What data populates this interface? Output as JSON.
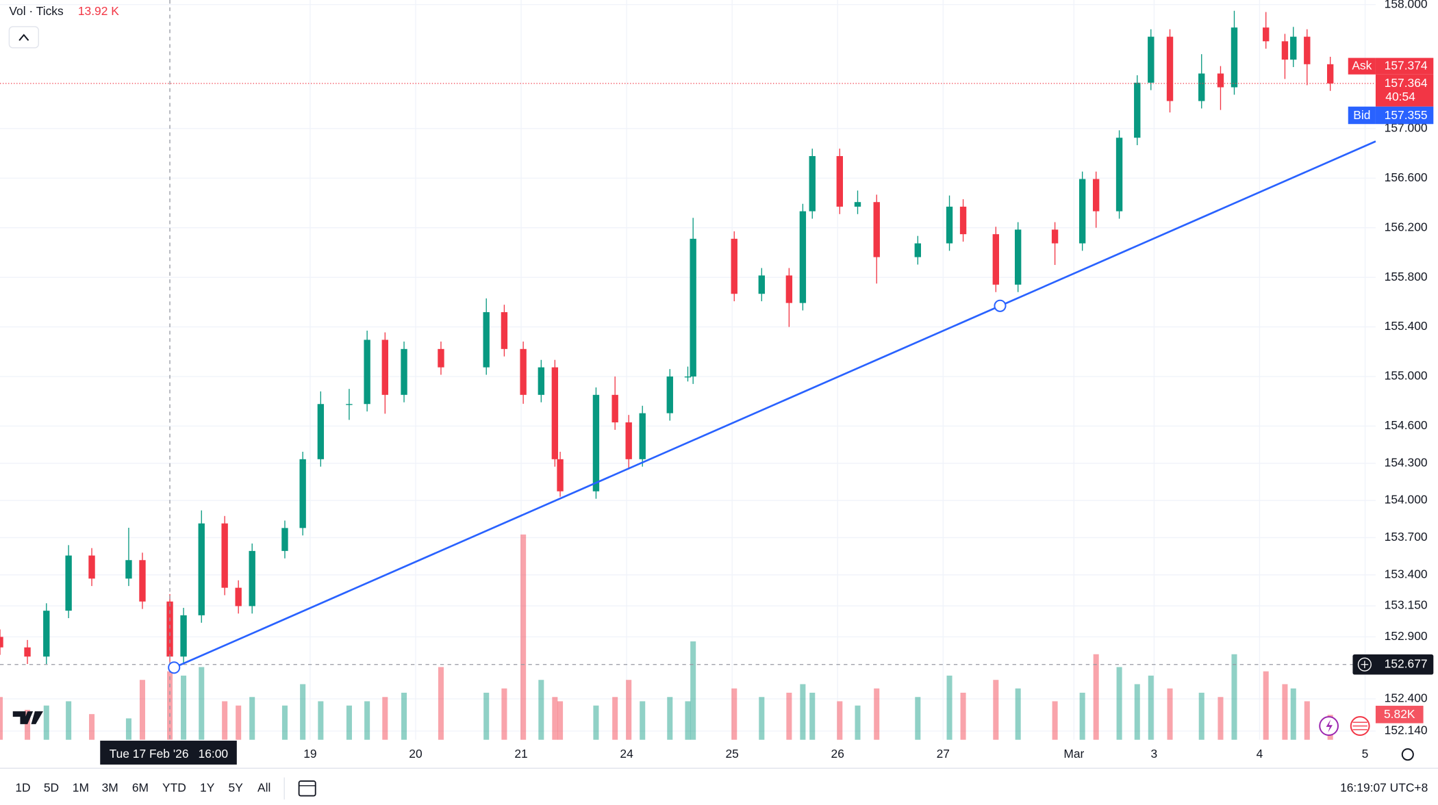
{
  "chart_data": {
    "type": "candlestick",
    "xlim": [
      -0.94,
      12.1
    ],
    "xticks": [
      {
        "value": 2,
        "label": "19"
      },
      {
        "value": 3,
        "label": "20"
      },
      {
        "value": 4,
        "label": "21"
      },
      {
        "value": 5,
        "label": "24"
      },
      {
        "value": 6,
        "label": "25"
      },
      {
        "value": 7,
        "label": "26"
      },
      {
        "value": 8,
        "label": "27"
      },
      {
        "value": 9.24,
        "label": "Mar"
      },
      {
        "value": 10,
        "label": "3"
      },
      {
        "value": 11,
        "label": "4"
      },
      {
        "value": 12,
        "label": "5"
      }
    ],
    "ylim": [
      152.07,
      158.037
    ],
    "yticks": [
      {
        "value": 158,
        "label": "158.000"
      },
      {
        "value": 157,
        "label": "157.000"
      },
      {
        "value": 156.6,
        "label": "156.600"
      },
      {
        "value": 156.2,
        "label": "156.200"
      },
      {
        "value": 155.8,
        "label": "155.800"
      },
      {
        "value": 155.4,
        "label": "155.400"
      },
      {
        "value": 155,
        "label": "155.000"
      },
      {
        "value": 154.6,
        "label": "154.600"
      },
      {
        "value": 154.3,
        "label": "154.300"
      },
      {
        "value": 154,
        "label": "154.000"
      },
      {
        "value": 153.7,
        "label": "153.700"
      },
      {
        "value": 153.4,
        "label": "153.400"
      },
      {
        "value": 153.15,
        "label": "153.150"
      },
      {
        "value": 152.9,
        "label": "152.900"
      },
      {
        "value": 152.4,
        "label": "152.400"
      },
      {
        "value": 152.14,
        "label": "152.140"
      }
    ],
    "grid": true,
    "up_color": "#089981",
    "down_color": "#f23645",
    "x": [
      -0.94,
      -0.68,
      -0.5,
      -0.29,
      -0.07,
      0.28,
      0.41,
      0.67,
      0.8,
      0.97,
      1.19,
      1.32,
      1.45,
      1.76,
      1.93,
      2.1,
      2.37,
      2.54,
      2.71,
      2.89,
      3.24,
      3.67,
      3.84,
      4.02,
      4.19,
      4.32,
      4.37,
      4.71,
      4.89,
      5.02,
      5.15,
      5.41,
      5.58,
      5.63,
      6.02,
      6.28,
      6.54,
      6.67,
      6.76,
      7.02,
      7.19,
      7.37,
      7.76,
      8.06,
      8.19,
      8.5,
      8.71,
      9.06,
      9.32,
      9.45,
      9.67,
      9.84,
      9.97,
      10.15,
      10.45,
      10.63,
      10.76,
      11.06,
      11.24,
      11.32,
      11.45,
      11.67
    ],
    "open": [
      152.9,
      152.815,
      152.741,
      153.111,
      153.556,
      153.37,
      153.519,
      153.185,
      152.741,
      153.074,
      153.815,
      153.296,
      153.148,
      153.593,
      153.778,
      154.333,
      154.778,
      154.778,
      155.296,
      154.852,
      155.222,
      155.074,
      155.519,
      155.222,
      154.852,
      155.074,
      154.333,
      154.074,
      154.852,
      154.63,
      154.333,
      154.704,
      155,
      155,
      156.111,
      155.667,
      155.815,
      155.593,
      156.333,
      156.778,
      156.37,
      156.407,
      155.963,
      156.074,
      156.37,
      156.148,
      155.741,
      156.185,
      156.074,
      156.593,
      156.333,
      156.926,
      157.37,
      157.741,
      157.222,
      157.444,
      157.333,
      157.815,
      157.704,
      157.556,
      157.741,
      157.519
    ],
    "high": [
      152.96,
      152.875,
      153.171,
      153.64,
      153.616,
      153.78,
      153.579,
      153.245,
      153.134,
      153.92,
      153.875,
      153.356,
      153.653,
      153.838,
      154.393,
      154.88,
      154.9,
      155.37,
      155.356,
      155.282,
      155.282,
      155.63,
      155.579,
      155.282,
      155.134,
      155.134,
      154.393,
      154.912,
      155,
      154.69,
      154.764,
      155.06,
      155.08,
      156.28,
      156.171,
      155.875,
      155.875,
      156.393,
      156.838,
      156.838,
      156.5,
      156.467,
      156.134,
      156.46,
      156.43,
      156.208,
      156.245,
      156.245,
      156.653,
      156.653,
      156.986,
      157.43,
      157.801,
      157.801,
      157.6,
      157.504,
      157.95,
      157.94,
      157.764,
      157.82,
      157.801,
      157.579
    ],
    "low": [
      152.755,
      152.681,
      152.681,
      153.051,
      153.31,
      153.31,
      153.125,
      152.66,
      152.681,
      153.014,
      153.236,
      153.088,
      153.088,
      153.533,
      153.718,
      154.273,
      154.65,
      154.718,
      154.7,
      154.792,
      155.014,
      155.014,
      155.162,
      154.78,
      154.792,
      154.273,
      154.03,
      154.014,
      154.57,
      154.25,
      154.273,
      154.644,
      154.96,
      154.94,
      155.607,
      155.607,
      155.4,
      155.533,
      156.273,
      156.31,
      156.31,
      155.75,
      155.903,
      156.014,
      156.088,
      155.681,
      155.681,
      155.9,
      156.014,
      156.2,
      156.273,
      156.866,
      157.31,
      157.13,
      157.162,
      157.15,
      157.273,
      157.644,
      157.4,
      157.496,
      157.35,
      157.304
    ],
    "close": [
      152.815,
      152.741,
      153.111,
      153.556,
      153.37,
      153.519,
      153.185,
      152.741,
      153.074,
      153.815,
      153.296,
      153.148,
      153.593,
      153.778,
      154.333,
      154.778,
      154.778,
      155.296,
      154.852,
      155.222,
      155.074,
      155.519,
      155.222,
      154.852,
      155.074,
      154.333,
      154.074,
      154.852,
      154.63,
      154.333,
      154.704,
      155,
      155,
      156.111,
      155.667,
      155.815,
      155.593,
      156.333,
      156.778,
      156.37,
      156.407,
      155.963,
      156.074,
      156.37,
      156.148,
      155.741,
      156.185,
      156.074,
      156.593,
      156.333,
      156.926,
      157.37,
      157.741,
      157.222,
      157.444,
      157.333,
      157.815,
      157.704,
      157.556,
      157.741,
      157.519,
      157.364
    ],
    "volume": [
      10,
      7,
      8,
      9,
      6,
      5,
      14,
      16,
      15,
      17,
      9,
      8,
      10,
      8,
      13,
      9,
      8,
      9,
      10,
      11,
      17,
      11,
      12,
      48,
      14,
      10,
      9,
      8,
      10,
      14,
      9,
      10,
      9,
      23,
      12,
      10,
      11,
      13,
      11,
      9,
      8,
      12,
      10,
      15,
      11,
      14,
      12,
      9,
      11,
      20,
      17,
      13,
      15,
      12,
      11,
      10,
      20,
      16,
      13,
      12,
      9,
      5.82
    ],
    "volume_ylim": [
      0,
      173
    ],
    "trendline": {
      "x": [
        0.71,
        8.54
      ],
      "y": [
        152.652,
        155.57
      ],
      "color": "#2962ff"
    },
    "ask": 157.374,
    "last": 157.364,
    "bid": 157.355,
    "crosshair": {
      "x": 0.67,
      "price": 152.677,
      "date": "Tue 17 Feb '26",
      "time": "16:00"
    }
  },
  "ui": {
    "legend_label": "Vol · Ticks",
    "legend_value": "13.92 K",
    "ask_label": "Ask",
    "bid_label": "Bid",
    "countdown": "40:54",
    "volume_label": "5.82K",
    "timeframes": [
      "1D",
      "5D",
      "1M",
      "3M",
      "6M",
      "YTD",
      "1Y",
      "5Y",
      "All"
    ],
    "clock": "16:19:07 UTC+8"
  }
}
